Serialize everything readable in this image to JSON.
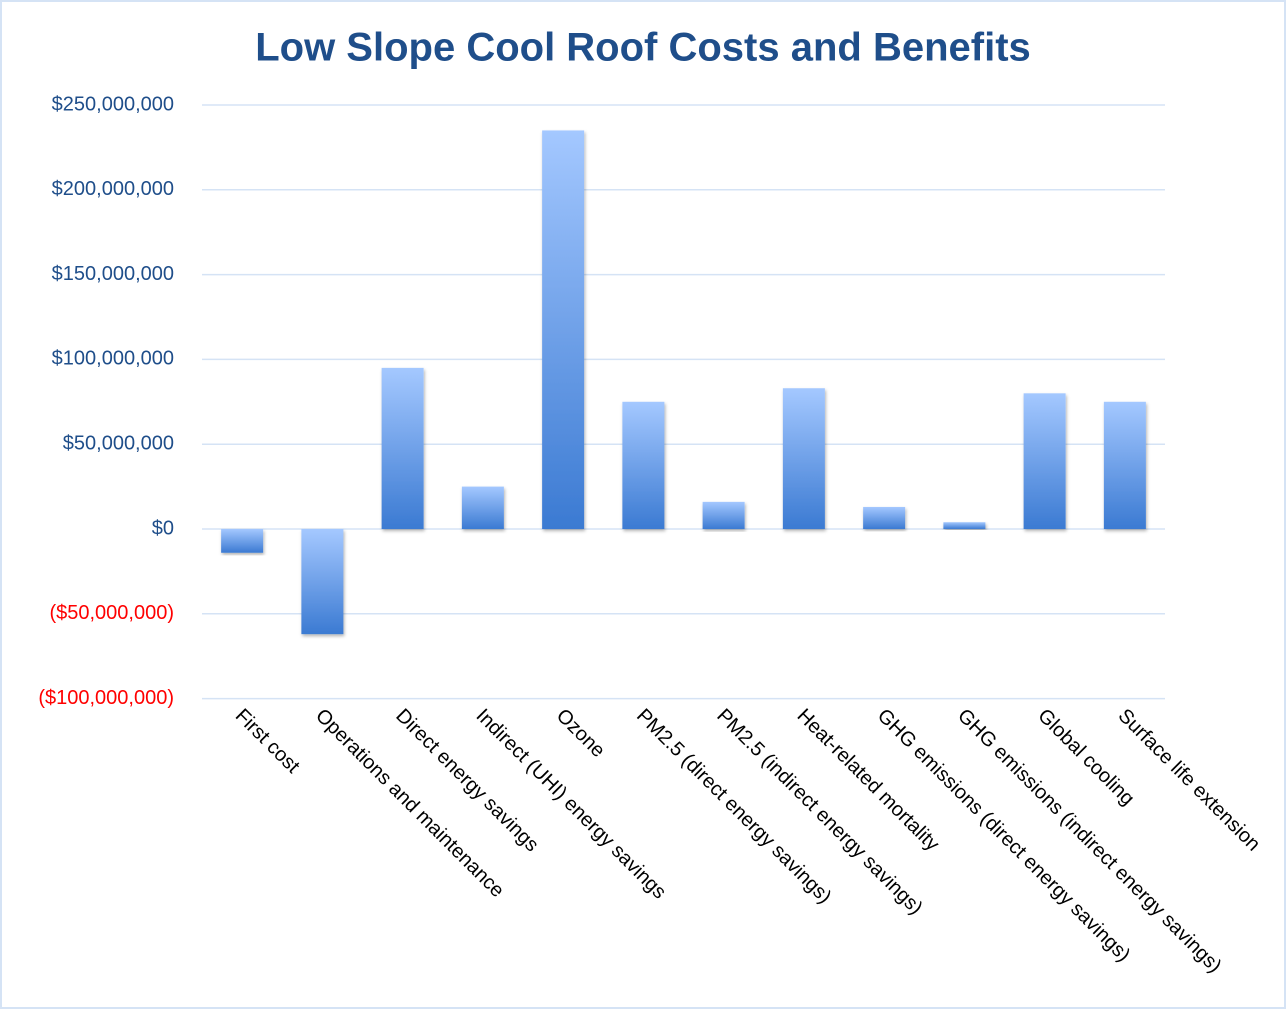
{
  "chart_data": {
    "type": "bar",
    "title": "Low Slope Cool Roof Costs and Benefits",
    "categories": [
      "First cost",
      "Operations and maintenance",
      "Direct energy savings",
      "Indirect (UHI) energy savings",
      "Ozone",
      "PM2.5 (direct energy savings)",
      "PM2.5 (indirect energy savings)",
      "Heat-related mortality",
      "GHG emissions (direct energy savings)",
      "GHG emissions (indirect energy savings)",
      "Global cooling",
      "Surface life extension"
    ],
    "values": [
      -14000000,
      -62000000,
      95000000,
      25000000,
      235000000,
      75000000,
      16000000,
      83000000,
      13000000,
      4000000,
      80000000,
      75000000
    ],
    "color": [
      "#a4c8ff",
      "#3b7ad2"
    ],
    "ylim": [
      -100000000,
      250000000
    ],
    "yticks": [
      {
        "value": -100000000,
        "label": "($100,000,000)"
      },
      {
        "value": -50000000,
        "label": "($50,000,000)"
      },
      {
        "value": 0,
        "label": "$0"
      },
      {
        "value": 50000000,
        "label": "$50,000,000"
      },
      {
        "value": 100000000,
        "label": "$100,000,000"
      },
      {
        "value": 150000000,
        "label": "$150,000,000"
      },
      {
        "value": 200000000,
        "label": "$200,000,000"
      },
      {
        "value": 250000000,
        "label": "$250,000,000"
      }
    ],
    "tick_label_color": "#1f4e8a",
    "negative_tick_label_color": "#ff0000",
    "grid": true
  }
}
